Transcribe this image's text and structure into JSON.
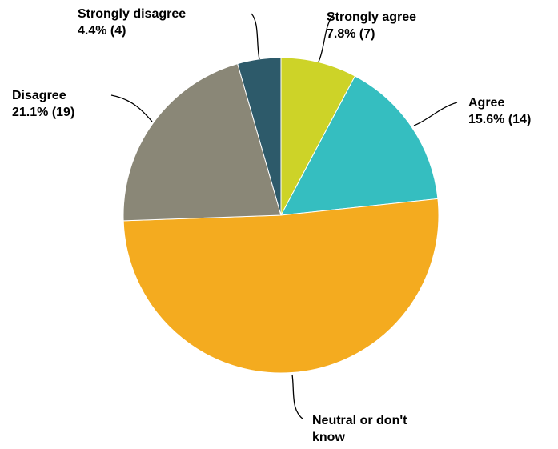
{
  "chart_data": {
    "type": "pie",
    "title": "",
    "start_angle_deg": 0,
    "direction": "clockwise",
    "slices": [
      {
        "label": "Strongly agree",
        "percent_label": "7.8% (7)",
        "value": 7,
        "percent": 7.8,
        "color": "#cdd328"
      },
      {
        "label": "Agree",
        "percent_label": "15.6% (14)",
        "value": 14,
        "percent": 15.6,
        "color": "#35bec0"
      },
      {
        "label": "Neutral or don't",
        "label_line2": "know",
        "percent_label": "",
        "value": 46,
        "percent": 51.1,
        "color": "#f4ab1f"
      },
      {
        "label": "Disagree",
        "percent_label": "21.1% (19)",
        "value": 19,
        "percent": 21.1,
        "color": "#8a8777"
      },
      {
        "label": "Strongly disagree",
        "percent_label": "4.4% (4)",
        "value": 4,
        "percent": 4.4,
        "color": "#2d5a6a"
      }
    ]
  }
}
